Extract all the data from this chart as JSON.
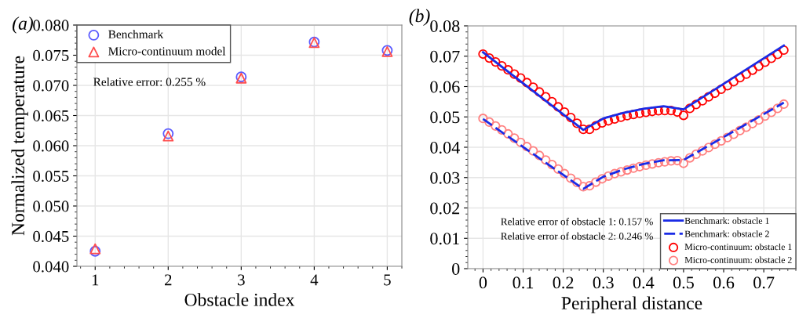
{
  "chart_data": [
    {
      "type": "scatter",
      "title": "(a)",
      "xlabel": "Obstacle index",
      "ylabel": "Normalized temperature",
      "x": [
        1,
        2,
        3,
        4,
        5
      ],
      "series": [
        {
          "name": "Benchmark",
          "color": "#5a5aff",
          "marker": "circle",
          "values": [
            0.0425,
            0.062,
            0.0714,
            0.0772,
            0.0758
          ]
        },
        {
          "name": "Micro-continuum model",
          "color": "#ff4d4d",
          "marker": "triangle",
          "values": [
            0.0429,
            0.0616,
            0.0712,
            0.0771,
            0.0756
          ]
        }
      ],
      "xlim": [
        0.75,
        5.2
      ],
      "xticks": [
        1,
        2,
        3,
        4,
        5
      ],
      "ylim": [
        0.04,
        0.08
      ],
      "yticks": [
        {
          "value": 0.04,
          "label": "0.040"
        },
        {
          "value": 0.045,
          "label": "0.045"
        },
        {
          "value": 0.05,
          "label": "0.050"
        },
        {
          "value": 0.055,
          "label": "0.055"
        },
        {
          "value": 0.06,
          "label": "0.060"
        },
        {
          "value": 0.065,
          "label": "0.065"
        },
        {
          "value": 0.07,
          "label": "0.070"
        },
        {
          "value": 0.075,
          "label": "0.075"
        },
        {
          "value": 0.08,
          "label": "0.080"
        }
      ],
      "grid": true,
      "legend": "top left",
      "annotations": [
        "Relative error: 0.255 %"
      ]
    },
    {
      "type": "scatter",
      "title": "(b)",
      "xlabel": "Peripheral distance",
      "x": [
        0,
        0.0156,
        0.0313,
        0.0469,
        0.0625,
        0.0781,
        0.0938,
        0.1094,
        0.125,
        0.1406,
        0.1563,
        0.1719,
        0.1875,
        0.2031,
        0.2188,
        0.2344,
        0.25,
        0.2656,
        0.2813,
        0.2969,
        0.3125,
        0.3281,
        0.3438,
        0.3594,
        0.375,
        0.3906,
        0.4063,
        0.4219,
        0.4375,
        0.4531,
        0.4688,
        0.4844,
        0.5,
        0.5156,
        0.5313,
        0.5469,
        0.5625,
        0.5781,
        0.5938,
        0.6094,
        0.625,
        0.6406,
        0.6563,
        0.6719,
        0.6875,
        0.7031,
        0.7188,
        0.7344,
        0.75
      ],
      "series": [
        {
          "name": "Benchmark: obstacle 1",
          "type": "line",
          "color": "#1a2be6",
          "marker": "none",
          "line_style": "solid",
          "x": [
            0,
            0.25,
            0.3,
            0.35,
            0.4,
            0.45,
            0.5,
            0.75
          ],
          "values": [
            0.0713,
            0.0457,
            0.0495,
            0.0513,
            0.0527,
            0.0535,
            0.0525,
            0.0735
          ]
        },
        {
          "name": "Benchmark: obstacle 2",
          "type": "line",
          "color": "#1a2be6",
          "marker": "none",
          "line_style": "dashed",
          "x": [
            0,
            0.25,
            0.3,
            0.35,
            0.4,
            0.45,
            0.5,
            0.75
          ],
          "values": [
            0.0493,
            0.0263,
            0.0303,
            0.0327,
            0.0345,
            0.0357,
            0.0358,
            0.0547
          ]
        },
        {
          "name": "Micro-continuum: obstacle 1",
          "type": "scatter",
          "color": "#ff0000",
          "marker": "circle",
          "values": [
            0.0707,
            0.0694,
            0.0681,
            0.0668,
            0.0655,
            0.0641,
            0.0628,
            0.0613,
            0.0598,
            0.0582,
            0.0566,
            0.055,
            0.0533,
            0.0516,
            0.0498,
            0.0479,
            0.0459,
            0.0459,
            0.0471,
            0.048,
            0.0487,
            0.0493,
            0.0499,
            0.0504,
            0.0508,
            0.0512,
            0.0515,
            0.0518,
            0.052,
            0.0521,
            0.0521,
            0.0516,
            0.0505,
            0.0528,
            0.0541,
            0.0553,
            0.0566,
            0.0578,
            0.0591,
            0.0603,
            0.0616,
            0.0629,
            0.0641,
            0.0654,
            0.0667,
            0.068,
            0.0693,
            0.0706,
            0.072
          ]
        },
        {
          "name": "Micro-continuum: obstacle 2",
          "type": "scatter",
          "color": "#ff8080",
          "marker": "circle",
          "values": [
            0.0495,
            0.0483,
            0.047,
            0.0457,
            0.0444,
            0.043,
            0.0416,
            0.0402,
            0.0388,
            0.0373,
            0.0358,
            0.0343,
            0.0328,
            0.0313,
            0.0298,
            0.0284,
            0.027,
            0.0273,
            0.0285,
            0.0296,
            0.0305,
            0.0313,
            0.0319,
            0.0325,
            0.0331,
            0.0336,
            0.0341,
            0.0345,
            0.0349,
            0.0352,
            0.0355,
            0.0356,
            0.0347,
            0.0365,
            0.0377,
            0.0388,
            0.0399,
            0.041,
            0.0421,
            0.0432,
            0.0443,
            0.0455,
            0.0466,
            0.0478,
            0.049,
            0.0503,
            0.0515,
            0.0528,
            0.0542
          ]
        }
      ],
      "xlim": [
        -0.038,
        0.78
      ],
      "xticks": [
        0,
        0.1,
        0.2,
        0.3,
        0.4,
        0.5,
        0.6,
        0.7
      ],
      "ylim": [
        0,
        0.08
      ],
      "yticks": [
        0,
        0.01,
        0.02,
        0.03,
        0.04,
        0.05,
        0.06,
        0.07,
        0.08
      ],
      "grid": true,
      "legend": "bottom right",
      "annotations": [
        "Relative error of obstacle 1: 0.157 %",
        "Relative error of obstacle 2: 0.246 %"
      ]
    }
  ]
}
